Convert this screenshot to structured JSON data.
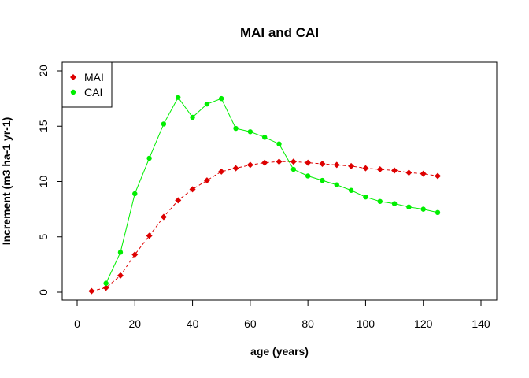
{
  "chart_data": {
    "type": "line",
    "title": "MAI and CAI",
    "xlabel": "age (years)",
    "ylabel": "Increment (m3 ha-1 yr-1)",
    "xlim": [
      0,
      140
    ],
    "ylim": [
      0,
      20
    ],
    "xticks": [
      0,
      20,
      40,
      60,
      80,
      100,
      120,
      140
    ],
    "yticks": [
      0,
      5,
      10,
      15,
      20
    ],
    "legend_position": "top-left",
    "series": [
      {
        "name": "MAI",
        "color": "#dd0000",
        "marker": "diamond",
        "line": "dashed",
        "x": [
          5,
          10,
          15,
          20,
          25,
          30,
          35,
          40,
          45,
          50,
          55,
          60,
          65,
          70,
          75,
          80,
          85,
          90,
          95,
          100,
          105,
          110,
          115,
          120,
          125
        ],
        "y": [
          0.1,
          0.4,
          1.5,
          3.4,
          5.1,
          6.8,
          8.3,
          9.3,
          10.1,
          10.9,
          11.2,
          11.5,
          11.7,
          11.8,
          11.8,
          11.7,
          11.6,
          11.5,
          11.4,
          11.2,
          11.1,
          11.0,
          10.8,
          10.7,
          10.5
        ]
      },
      {
        "name": "CAI",
        "color": "#00ee00",
        "marker": "circle",
        "line": "solid",
        "x": [
          10,
          15,
          20,
          25,
          30,
          35,
          40,
          45,
          50,
          55,
          60,
          65,
          70,
          75,
          80,
          85,
          90,
          95,
          100,
          105,
          110,
          115,
          120,
          125
        ],
        "y": [
          0.8,
          3.6,
          8.9,
          12.1,
          15.2,
          17.6,
          15.8,
          17.0,
          17.5,
          14.8,
          14.5,
          14.0,
          13.4,
          11.1,
          10.5,
          10.1,
          9.7,
          9.2,
          8.6,
          8.2,
          8.0,
          7.7,
          7.5,
          7.2
        ]
      }
    ]
  }
}
